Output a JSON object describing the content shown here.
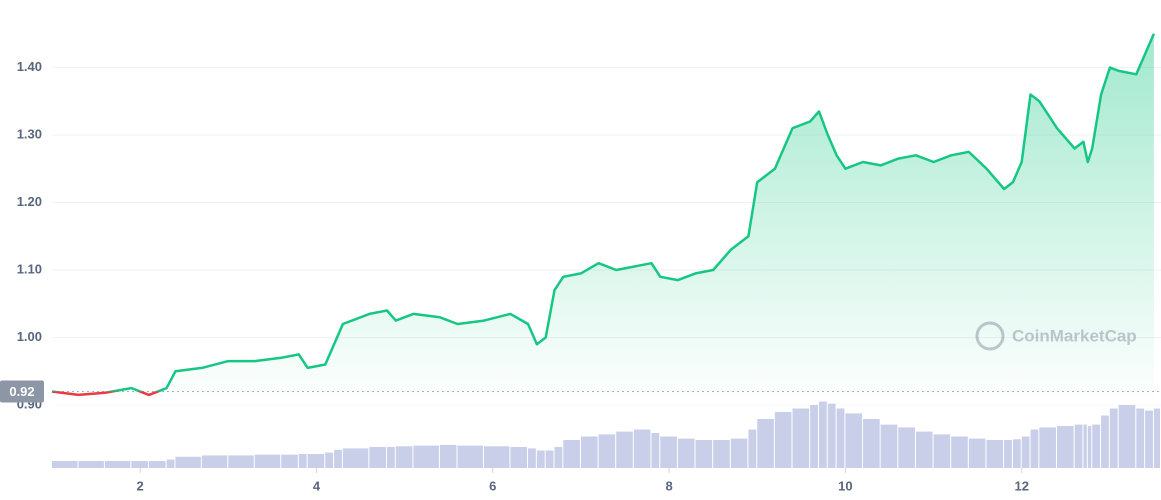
{
  "chart_data": {
    "type": "line",
    "watermark": "CoinMarketCap",
    "x": [
      1.0,
      1.3,
      1.6,
      1.9,
      2.1,
      2.3,
      2.4,
      2.7,
      3.0,
      3.3,
      3.6,
      3.8,
      3.9,
      4.1,
      4.2,
      4.3,
      4.6,
      4.8,
      4.9,
      5.1,
      5.4,
      5.6,
      5.9,
      6.2,
      6.4,
      6.5,
      6.6,
      6.7,
      6.8,
      7.0,
      7.2,
      7.4,
      7.6,
      7.8,
      7.9,
      8.1,
      8.3,
      8.5,
      8.7,
      8.9,
      9.0,
      9.2,
      9.4,
      9.6,
      9.7,
      9.8,
      9.9,
      10.0,
      10.2,
      10.4,
      10.6,
      10.8,
      11.0,
      11.2,
      11.4,
      11.6,
      11.8,
      11.9,
      12.0,
      12.1,
      12.2,
      12.4,
      12.6,
      12.7,
      12.75,
      12.8,
      12.9,
      13.0,
      13.1,
      13.3,
      13.4,
      13.5
    ],
    "series": [
      {
        "color": "#16c784",
        "down_color": "#ea3943",
        "values": [
          0.92,
          0.915,
          0.918,
          0.925,
          0.915,
          0.925,
          0.95,
          0.955,
          0.965,
          0.965,
          0.97,
          0.975,
          0.955,
          0.96,
          0.99,
          1.02,
          1.035,
          1.04,
          1.025,
          1.035,
          1.03,
          1.02,
          1.025,
          1.035,
          1.02,
          0.99,
          1.0,
          1.07,
          1.09,
          1.095,
          1.11,
          1.1,
          1.105,
          1.11,
          1.09,
          1.085,
          1.095,
          1.1,
          1.13,
          1.15,
          1.23,
          1.25,
          1.31,
          1.32,
          1.335,
          1.3,
          1.27,
          1.25,
          1.26,
          1.255,
          1.265,
          1.27,
          1.26,
          1.27,
          1.275,
          1.25,
          1.22,
          1.23,
          1.26,
          1.36,
          1.35,
          1.31,
          1.28,
          1.29,
          1.26,
          1.28,
          1.36,
          1.4,
          1.395,
          1.39,
          1.42,
          1.45
        ]
      }
    ],
    "volume": [
      10,
      10,
      10,
      10,
      10,
      12,
      16,
      18,
      18,
      19,
      19,
      20,
      20,
      22,
      26,
      28,
      30,
      30,
      31,
      32,
      33,
      32,
      31,
      30,
      28,
      25,
      25,
      30,
      40,
      45,
      48,
      52,
      55,
      50,
      45,
      42,
      40,
      40,
      42,
      55,
      70,
      80,
      85,
      90,
      95,
      92,
      85,
      78,
      70,
      62,
      58,
      52,
      48,
      45,
      42,
      40,
      40,
      41,
      45,
      55,
      58,
      60,
      62,
      62,
      60,
      62,
      75,
      85,
      90,
      85,
      82,
      85
    ],
    "volume_color": "#c9cfe8",
    "volume_lim": [
      0,
      100
    ],
    "reference_line": {
      "value": 0.92,
      "label": "0.92"
    },
    "xlim": [
      1,
      13.58
    ],
    "ylim": [
      0.9,
      1.5
    ],
    "xticks": [
      2,
      4,
      6,
      8,
      10,
      12
    ],
    "yticks": [
      {
        "value": 0.9,
        "label": "0.90"
      },
      {
        "value": 1.0,
        "label": "1.00"
      },
      {
        "value": 1.1,
        "label": "1.10"
      },
      {
        "value": 1.2,
        "label": "1.20"
      },
      {
        "value": 1.3,
        "label": "1.30"
      },
      {
        "value": 1.4,
        "label": "1.40"
      }
    ],
    "grid": true
  }
}
